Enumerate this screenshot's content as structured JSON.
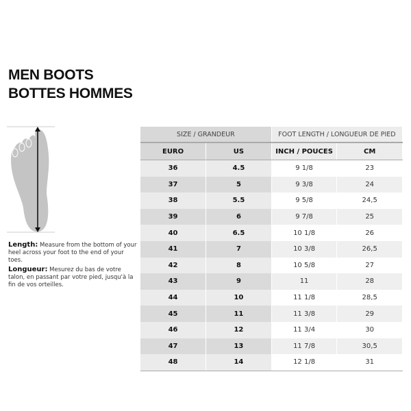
{
  "title": {
    "line1": "MEN BOOTS",
    "line2": "BOTTES HOMMES"
  },
  "description": {
    "en_label": "Length:",
    "en_text": " Measure from the bottom of your heel across your foot to the end of your toes.",
    "fr_label": "Longueur:",
    "fr_text": " Mesurez du bas de votre talon, en passant par votre pied, jusqu'à la fin de vos orteilles."
  },
  "table": {
    "group_headers": [
      "SIZE / GRANDEUR",
      "FOOT LENGTH / LONGUEUR DE PIED"
    ],
    "columns": [
      "EURO",
      "US",
      "INCH / POUCES",
      "CM"
    ],
    "rows": [
      [
        "36",
        "4.5",
        "9 1/8",
        "23"
      ],
      [
        "37",
        "5",
        "9 3/8",
        "24"
      ],
      [
        "38",
        "5.5",
        "9 5/8",
        "24,5"
      ],
      [
        "39",
        "6",
        "9 7/8",
        "25"
      ],
      [
        "40",
        "6.5",
        "10 1/8",
        "26"
      ],
      [
        "41",
        "7",
        "10 3/8",
        "26,5"
      ],
      [
        "42",
        "8",
        "10 5/8",
        "27"
      ],
      [
        "43",
        "9",
        "11",
        "28"
      ],
      [
        "44",
        "10",
        "11 1/8",
        "28,5"
      ],
      [
        "45",
        "11",
        "11 3/8",
        "29"
      ],
      [
        "46",
        "12",
        "11 3/4",
        "30"
      ],
      [
        "47",
        "13",
        "11 7/8",
        "30,5"
      ],
      [
        "48",
        "14",
        "12 1/8",
        "31"
      ]
    ]
  }
}
